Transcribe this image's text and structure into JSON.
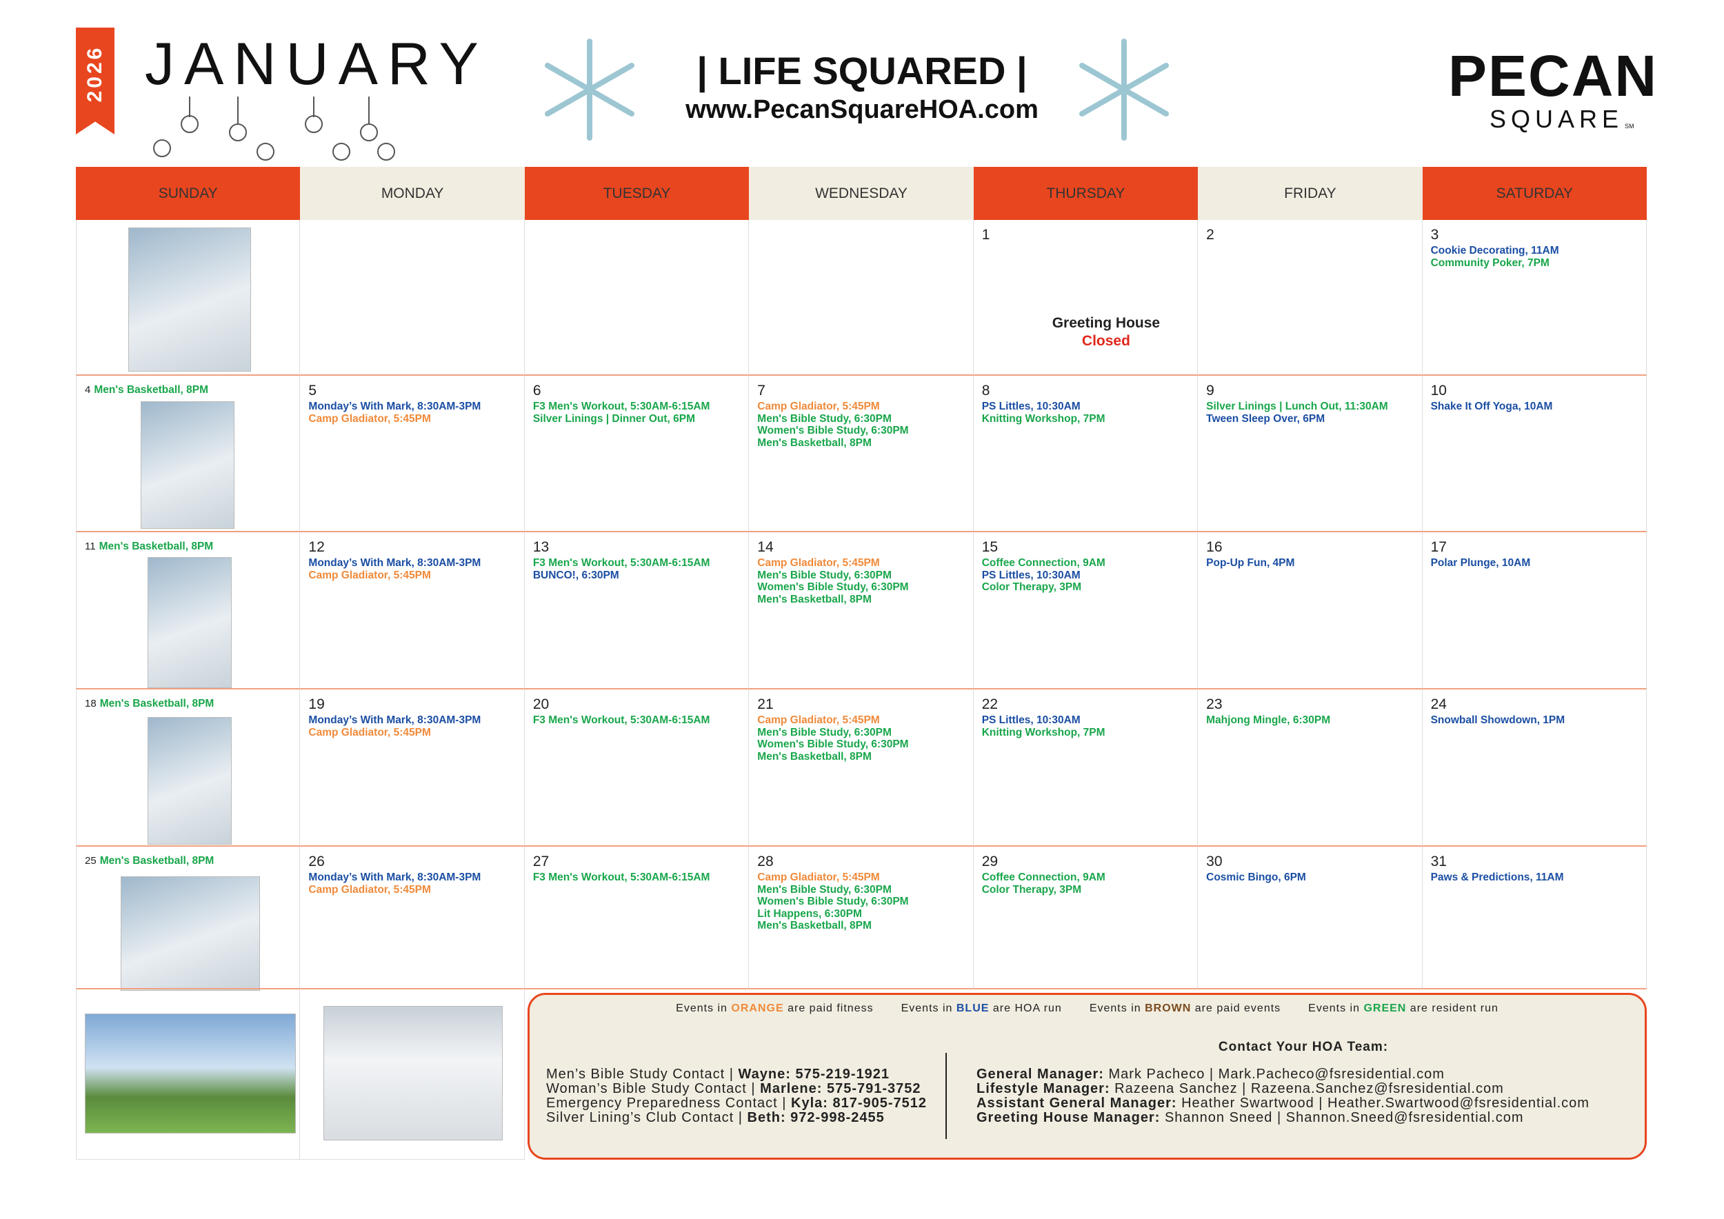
{
  "header": {
    "year": "2026",
    "month": "JANUARY",
    "title": "| LIFE SQUARED |",
    "website": "www.PecanSquareHOA.com",
    "brand": "PECAN",
    "brand_sub": "SQUARE",
    "brand_mark": "SM"
  },
  "weekdays": [
    "SUNDAY",
    "MONDAY",
    "TUESDAY",
    "WEDNESDAY",
    "THURSDAY",
    "FRIDAY",
    "SATURDAY"
  ],
  "event_colors": {
    "blue": "#1b4ea3",
    "green": "#19a64b",
    "orange": "#f08a3a",
    "brown": "#7a4a1e",
    "black": "#222222",
    "red": "#e2261c"
  },
  "weeks": [
    [
      {},
      {},
      {},
      {},
      {
        "day": "1",
        "note": [
          {
            "text": "Greeting House",
            "color": "black"
          },
          {
            "text": "Closed",
            "color": "red"
          }
        ]
      },
      {
        "day": "2"
      },
      {
        "day": "3",
        "events": [
          {
            "text": "Cookie Decorating, 11AM",
            "color": "blue"
          },
          {
            "text": "Community Poker, 7PM",
            "color": "green"
          }
        ]
      }
    ],
    [
      {
        "day": "4",
        "events": [
          {
            "text": "Men's Basketball, 8PM",
            "color": "green"
          }
        ]
      },
      {
        "day": "5",
        "events": [
          {
            "text": "Monday’s With Mark, 8:30AM-3PM",
            "color": "blue"
          },
          {
            "text": "Camp Gladiator, 5:45PM",
            "color": "orange"
          }
        ]
      },
      {
        "day": "6",
        "events": [
          {
            "text": "F3 Men's Workout, 5:30AM-6:15AM",
            "color": "green"
          },
          {
            "text": "Silver Linings | Dinner Out, 6PM",
            "color": "green"
          }
        ]
      },
      {
        "day": "7",
        "events": [
          {
            "text": "Camp Gladiator, 5:45PM",
            "color": "orange"
          },
          {
            "text": "Men's Bible Study, 6:30PM",
            "color": "green"
          },
          {
            "text": "Women's Bible Study, 6:30PM",
            "color": "green"
          },
          {
            "text": "Men's Basketball, 8PM",
            "color": "green"
          }
        ]
      },
      {
        "day": "8",
        "events": [
          {
            "text": "PS Littles, 10:30AM",
            "color": "blue"
          },
          {
            "text": "Knitting Workshop, 7PM",
            "color": "green"
          }
        ]
      },
      {
        "day": "9",
        "events": [
          {
            "text": "Silver Linings | Lunch Out, 11:30AM",
            "color": "green"
          },
          {
            "text": "Tween Sleep Over, 6PM",
            "color": "blue"
          }
        ]
      },
      {
        "day": "10",
        "events": [
          {
            "text": "Shake It Off Yoga, 10AM",
            "color": "blue"
          }
        ]
      }
    ],
    [
      {
        "day": "11",
        "events": [
          {
            "text": "Men's Basketball, 8PM",
            "color": "green"
          }
        ]
      },
      {
        "day": "12",
        "events": [
          {
            "text": "Monday’s With Mark, 8:30AM-3PM",
            "color": "blue"
          },
          {
            "text": "Camp Gladiator, 5:45PM",
            "color": "orange"
          }
        ]
      },
      {
        "day": "13",
        "events": [
          {
            "text": "F3 Men's Workout, 5:30AM-6:15AM",
            "color": "green"
          },
          {
            "text": "BUNCO!, 6:30PM",
            "color": "blue"
          }
        ]
      },
      {
        "day": "14",
        "events": [
          {
            "text": "Camp Gladiator, 5:45PM",
            "color": "orange"
          },
          {
            "text": "Men's Bible Study, 6:30PM",
            "color": "green"
          },
          {
            "text": "Women's Bible Study, 6:30PM",
            "color": "green"
          },
          {
            "text": "Men's Basketball, 8PM",
            "color": "green"
          }
        ]
      },
      {
        "day": "15",
        "events": [
          {
            "text": "Coffee Connection, 9AM",
            "color": "green"
          },
          {
            "text": "PS Littles, 10:30AM",
            "color": "blue"
          },
          {
            "text": "Color Therapy, 3PM",
            "color": "green"
          }
        ]
      },
      {
        "day": "16",
        "events": [
          {
            "text": "Pop-Up Fun, 4PM",
            "color": "blue"
          }
        ]
      },
      {
        "day": "17",
        "events": [
          {
            "text": "Polar Plunge, 10AM",
            "color": "blue"
          }
        ]
      }
    ],
    [
      {
        "day": "18",
        "events": [
          {
            "text": "Men's Basketball, 8PM",
            "color": "green"
          }
        ]
      },
      {
        "day": "19",
        "events": [
          {
            "text": "Monday’s With Mark, 8:30AM-3PM",
            "color": "blue"
          },
          {
            "text": "Camp Gladiator, 5:45PM",
            "color": "orange"
          }
        ]
      },
      {
        "day": "20",
        "events": [
          {
            "text": "F3 Men's Workout, 5:30AM-6:15AM",
            "color": "green"
          }
        ]
      },
      {
        "day": "21",
        "events": [
          {
            "text": "Camp Gladiator, 5:45PM",
            "color": "orange"
          },
          {
            "text": "Men's Bible Study, 6:30PM",
            "color": "green"
          },
          {
            "text": "Women's Bible Study, 6:30PM",
            "color": "green"
          },
          {
            "text": "Men's Basketball, 8PM",
            "color": "green"
          }
        ]
      },
      {
        "day": "22",
        "events": [
          {
            "text": "PS Littles, 10:30AM",
            "color": "blue"
          },
          {
            "text": "Knitting Workshop, 7PM",
            "color": "green"
          }
        ]
      },
      {
        "day": "23",
        "events": [
          {
            "text": "Mahjong Mingle, 6:30PM",
            "color": "green"
          }
        ]
      },
      {
        "day": "24",
        "events": [
          {
            "text": "Snowball Showdown, 1PM",
            "color": "blue"
          }
        ]
      }
    ],
    [
      {
        "day": "25",
        "events": [
          {
            "text": "Men's Basketball, 8PM",
            "color": "green"
          }
        ]
      },
      {
        "day": "26",
        "events": [
          {
            "text": "Monday’s With Mark, 8:30AM-3PM",
            "color": "blue"
          },
          {
            "text": "Camp Gladiator, 5:45PM",
            "color": "orange"
          }
        ]
      },
      {
        "day": "27",
        "events": [
          {
            "text": "F3 Men's Workout, 5:30AM-6:15AM",
            "color": "green"
          }
        ]
      },
      {
        "day": "28",
        "events": [
          {
            "text": "Camp Gladiator, 5:45PM",
            "color": "orange"
          },
          {
            "text": "Men's Bible Study, 6:30PM",
            "color": "green"
          },
          {
            "text": "Women's Bible Study, 6:30PM",
            "color": "green"
          },
          {
            "text": "Lit Happens, 6:30PM",
            "color": "green"
          },
          {
            "text": "Men's Basketball, 8PM",
            "color": "green"
          }
        ]
      },
      {
        "day": "29",
        "events": [
          {
            "text": "Coffee Connection, 9AM",
            "color": "green"
          },
          {
            "text": "Color Therapy, 3PM",
            "color": "green"
          }
        ]
      },
      {
        "day": "30",
        "events": [
          {
            "text": "Cosmic Bingo, 6PM",
            "color": "blue"
          }
        ]
      },
      {
        "day": "31",
        "events": [
          {
            "text": "Paws & Predictions, 11AM",
            "color": "blue"
          }
        ]
      }
    ]
  ],
  "legend": [
    {
      "prefix": "Events in",
      "word": "ORANGE",
      "suffix": "are paid fitness",
      "color": "orange"
    },
    {
      "prefix": "Events in",
      "word": "BLUE",
      "suffix": "are HOA run",
      "color": "blue"
    },
    {
      "prefix": "Events in",
      "word": "BROWN",
      "suffix": "are paid events",
      "color": "brown"
    },
    {
      "prefix": "Events in",
      "word": "GREEN",
      "suffix": "are resident run",
      "color": "green"
    }
  ],
  "club_contacts": [
    {
      "label": "Men’s Bible Study Contact |",
      "contact": "Wayne: 575-219-1921"
    },
    {
      "label": "Woman’s Bible Study Contact |",
      "contact": "Marlene: 575-791-3752"
    },
    {
      "label": "Emergency Preparedness Contact |",
      "contact": "Kyla: 817-905-7512"
    },
    {
      "label": "Silver Lining’s Club Contact |",
      "contact": "Beth: 972-998-2455"
    }
  ],
  "hoa_team": {
    "heading": "Contact Your HOA Team:",
    "members": [
      {
        "role": "General Manager:",
        "details": "Mark Pacheco | Mark.Pacheco@fsresidential.com"
      },
      {
        "role": "Lifestyle Manager:",
        "details": "Razeena Sanchez | Razeena.Sanchez@fsresidential.com"
      },
      {
        "role": "Assistant General Manager:",
        "details": "Heather Swartwood | Heather.Swartwood@fsresidential.com"
      },
      {
        "role": "Greeting House Manager:",
        "details": "Shannon Sneed | Shannon.Sneed@fsresidential.com"
      }
    ]
  }
}
